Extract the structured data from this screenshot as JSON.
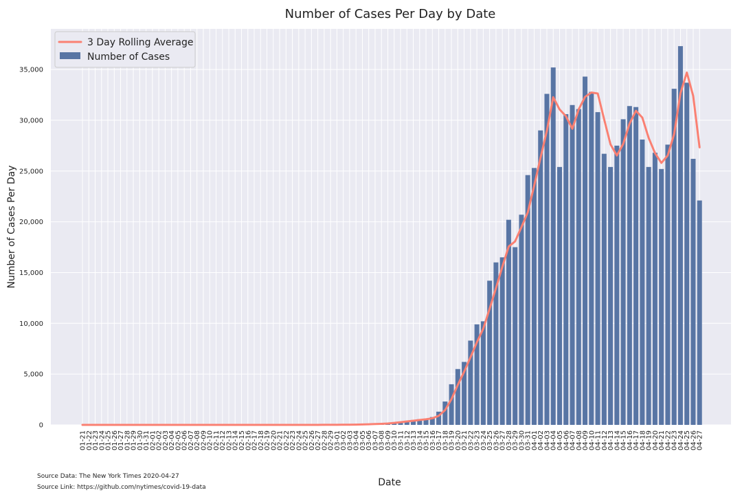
{
  "chart_data": {
    "type": "bar",
    "title": "Number of Cases Per Day by Date",
    "xlabel": "Date",
    "ylabel": "Number of Cases Per Day",
    "ylim": [
      0,
      39000
    ],
    "yticks": [
      0,
      5000,
      10000,
      15000,
      20000,
      25000,
      30000,
      35000
    ],
    "ytick_labels": [
      "0",
      "5,000",
      "10,000",
      "15,000",
      "20,000",
      "25,000",
      "30,000",
      "35,000"
    ],
    "grid": true,
    "legend_position": "top-left",
    "categories": [
      "01-21",
      "01-22",
      "01-23",
      "01-24",
      "01-25",
      "01-26",
      "01-27",
      "01-28",
      "01-29",
      "01-30",
      "01-31",
      "02-01",
      "02-02",
      "02-03",
      "02-04",
      "02-05",
      "02-06",
      "02-07",
      "02-08",
      "02-09",
      "02-10",
      "02-11",
      "02-12",
      "02-13",
      "02-14",
      "02-15",
      "02-16",
      "02-17",
      "02-18",
      "02-19",
      "02-20",
      "02-21",
      "02-22",
      "02-23",
      "02-24",
      "02-25",
      "02-26",
      "02-27",
      "02-28",
      "02-29",
      "03-01",
      "03-02",
      "03-03",
      "03-04",
      "03-05",
      "03-06",
      "03-07",
      "03-08",
      "03-09",
      "03-10",
      "03-11",
      "03-12",
      "03-13",
      "03-14",
      "03-15",
      "03-16",
      "03-17",
      "03-18",
      "03-19",
      "03-20",
      "03-21",
      "03-22",
      "03-23",
      "03-24",
      "03-25",
      "03-26",
      "03-27",
      "03-28",
      "03-29",
      "03-30",
      "03-31",
      "04-01",
      "04-02",
      "04-03",
      "04-04",
      "04-05",
      "04-06",
      "04-07",
      "04-08",
      "04-09",
      "04-10",
      "04-11",
      "04-12",
      "04-13",
      "04-14",
      "04-15",
      "04-16",
      "04-17",
      "04-18",
      "04-19",
      "04-20",
      "04-21",
      "04-22",
      "04-23",
      "04-24",
      "04-25",
      "04-26",
      "04-27"
    ],
    "series": [
      {
        "name": "Number of Cases",
        "kind": "bar",
        "color": "#5875a4",
        "values": [
          1,
          0,
          0,
          0,
          1,
          0,
          0,
          0,
          0,
          1,
          1,
          1,
          0,
          1,
          0,
          1,
          0,
          0,
          0,
          0,
          0,
          0,
          0,
          0,
          0,
          0,
          0,
          0,
          0,
          0,
          0,
          1,
          0,
          0,
          0,
          2,
          3,
          5,
          8,
          4,
          14,
          22,
          25,
          39,
          62,
          85,
          100,
          130,
          180,
          270,
          330,
          410,
          480,
          560,
          610,
          770,
          1300,
          2300,
          4000,
          5500,
          6200,
          8300,
          9900,
          10200,
          14200,
          16000,
          16500,
          20200,
          17500,
          20700,
          24600,
          25300,
          29000,
          32600,
          35200,
          25400,
          30600,
          31500,
          31100,
          34300,
          32800,
          30800,
          26700,
          25400,
          27500,
          30100,
          31400,
          31300,
          28100,
          25400,
          26800,
          25200,
          27600,
          33100,
          37300,
          33700,
          26200,
          22100
        ]
      },
      {
        "name": "3 Day Rolling Average",
        "kind": "line",
        "color": "#fa8072",
        "values": [
          0,
          0,
          0,
          0,
          0,
          0,
          0,
          0,
          0,
          0,
          1,
          1,
          1,
          1,
          0,
          0,
          0,
          0,
          0,
          0,
          0,
          0,
          0,
          0,
          0,
          0,
          0,
          0,
          0,
          0,
          0,
          0,
          0,
          0,
          0,
          1,
          2,
          3,
          5,
          6,
          9,
          13,
          20,
          29,
          42,
          62,
          82,
          105,
          137,
          193,
          260,
          337,
          407,
          483,
          550,
          647,
          893,
          1457,
          2533,
          3933,
          5233,
          6667,
          8133,
          9467,
          11433,
          13467,
          15567,
          17567,
          18067,
          19467,
          20933,
          23533,
          26300,
          28967,
          32267,
          31067,
          30400,
          29167,
          31067,
          32300,
          32733,
          32633,
          30100,
          27633,
          26533,
          27667,
          29667,
          30933,
          30267,
          28267,
          26767,
          25800,
          26533,
          28633,
          32667,
          34700,
          32400,
          27333
        ]
      }
    ],
    "source_lines": [
      "Source Data: The New York Times 2020-04-27",
      "Source Link: https://github.com/nytimes/covid-19-data"
    ]
  }
}
